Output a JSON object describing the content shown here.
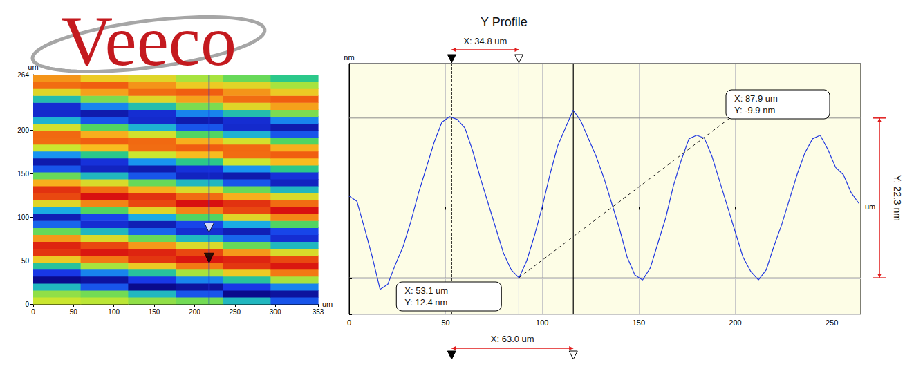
{
  "logo": "Veeco",
  "chart_data": [
    {
      "type": "heatmap",
      "x_label": "um",
      "y_label": "um",
      "xlim": [
        0,
        353
      ],
      "xticks": [
        0,
        50,
        100,
        150,
        200,
        250,
        300,
        353
      ],
      "ylim": [
        0,
        264
      ],
      "yticks": [
        0,
        50,
        100,
        150,
        200,
        264
      ],
      "x_edges": [
        0,
        58.8,
        117.7,
        176.5,
        235.3,
        294.2,
        353
      ],
      "y_edges": [
        0,
        8,
        16,
        24,
        32,
        40,
        48,
        56,
        64,
        72,
        80,
        88,
        96,
        104,
        112,
        120,
        128,
        136,
        144,
        152,
        160,
        168,
        176,
        184,
        192,
        200,
        208,
        216,
        224,
        232,
        240,
        248,
        256,
        264
      ],
      "z": [
        [
          3,
          2.5,
          1.5,
          0.8,
          -3,
          -7
        ],
        [
          1.5,
          0.8,
          -3,
          -7,
          -11.5,
          -10.8
        ],
        [
          -3,
          -7,
          -11.5,
          -10.8,
          -8,
          -5.5
        ],
        [
          -11.5,
          -10.8,
          -8,
          -5.5,
          -2,
          2
        ],
        [
          -8,
          -5.5,
          -2,
          2,
          5.5,
          9
        ],
        [
          -2,
          2,
          5.5,
          9,
          11.8,
          13.2
        ],
        [
          5.5,
          9,
          11.8,
          13.2,
          12.6,
          11
        ],
        [
          11.8,
          13.2,
          12.6,
          11,
          7.8,
          4
        ],
        [
          12.6,
          11,
          7.8,
          4,
          0.5,
          -3
        ],
        [
          7.8,
          4,
          0.5,
          -3,
          -6.5,
          -8.8
        ],
        [
          0.5,
          -3,
          -6.5,
          -8.8,
          -9.9,
          -7.5
        ],
        [
          -6.5,
          -8.8,
          -9.9,
          -7.5,
          -4,
          0
        ],
        [
          -9.9,
          -7.5,
          -4,
          0,
          4.5,
          8.5
        ],
        [
          -4,
          0,
          4.5,
          8.5,
          11,
          13.5
        ],
        [
          4.5,
          8.5,
          11,
          13.5,
          12,
          9.5
        ],
        [
          11,
          13.5,
          12,
          9.5,
          7,
          4
        ],
        [
          12,
          9.5,
          7,
          4,
          0.5,
          -3
        ],
        [
          7,
          4,
          0.5,
          -3,
          -7,
          -9.5
        ],
        [
          0.5,
          -3,
          -7,
          -9.5,
          -10.2,
          -8.5
        ],
        [
          -7,
          -9.5,
          -10.2,
          -8.5,
          -5,
          -1.5
        ],
        [
          -10.2,
          -8.5,
          -5,
          -1.5,
          3,
          6.5
        ],
        [
          -5,
          -1.5,
          3,
          6.5,
          9.5,
          10
        ],
        [
          3,
          6.5,
          9.5,
          10,
          9.6,
          7
        ],
        [
          9.5,
          10,
          9.6,
          7,
          3.5,
          0
        ],
        [
          9.6,
          7,
          3.5,
          0,
          -3.5,
          -7
        ],
        [
          3.5,
          0,
          -3.5,
          -7,
          -9,
          -10.2
        ],
        [
          -3.5,
          -7,
          -9,
          -10.2,
          -8.8,
          -5.5
        ],
        [
          -9,
          -10.2,
          -8.8,
          -5.5,
          -2.5,
          1
        ],
        [
          -8.8,
          -5.5,
          -2.5,
          1,
          4.5,
          7.5
        ],
        [
          -2.5,
          1,
          4.5,
          7.5,
          9.5,
          10
        ],
        [
          4.5,
          7.5,
          9.5,
          10,
          8,
          5.5
        ],
        [
          9.5,
          10,
          8,
          5.5,
          4.5,
          2
        ],
        [
          8,
          5.5,
          4.5,
          2,
          0.5,
          -1.5
        ]
      ],
      "zlim": [
        -11.5,
        13.5
      ],
      "profile_line": {
        "x": 218,
        "color": "#2038e0"
      },
      "cursors": [
        {
          "y": 53.1,
          "color": "#000000"
        },
        {
          "y": 87.9,
          "color": "#ffffff"
        }
      ]
    },
    {
      "type": "line",
      "title": "Y Profile",
      "x_label": "um",
      "y_label": "nm",
      "xlim": [
        0,
        265
      ],
      "xticks": [
        0,
        50,
        100,
        150,
        200,
        250
      ],
      "ylim": [
        -15,
        20
      ],
      "yticks": [
        -15,
        -10,
        -5,
        0,
        5,
        10,
        15,
        20
      ],
      "grid": true,
      "tick_labels": "x",
      "color": "#2038e0",
      "x": [
        0,
        4,
        8,
        12,
        16,
        20,
        24,
        28,
        32,
        36,
        40,
        44,
        48,
        52,
        56,
        60,
        64,
        68,
        72,
        76,
        80,
        84,
        88,
        92,
        96,
        100,
        104,
        108,
        112,
        116,
        120,
        124,
        128,
        132,
        136,
        140,
        144,
        148,
        152,
        156,
        160,
        164,
        168,
        172,
        176,
        180,
        184,
        188,
        192,
        196,
        200,
        204,
        208,
        212,
        216,
        220,
        224,
        228,
        232,
        236,
        240,
        244,
        248,
        252,
        256,
        260,
        264
      ],
      "values": [
        1.5,
        0.8,
        -3,
        -7,
        -11.5,
        -10.8,
        -8,
        -5.5,
        -2,
        2,
        5.5,
        9,
        11.8,
        12.6,
        12.2,
        11,
        7.8,
        4,
        0.5,
        -3,
        -6.5,
        -8.8,
        -9.9,
        -7.5,
        -4,
        0,
        4.5,
        8.5,
        11,
        13.5,
        12,
        9.5,
        7,
        4,
        0.5,
        -3,
        -7,
        -9.5,
        -10.2,
        -8.5,
        -5,
        -1.5,
        3,
        6.5,
        9.5,
        10,
        9.6,
        7,
        3.5,
        0,
        -3.5,
        -7,
        -9,
        -10.2,
        -8.8,
        -5.5,
        -2.5,
        1,
        4.5,
        7.5,
        9.5,
        10,
        8,
        5.5,
        4.5,
        2,
        0.5
      ],
      "cursors": [
        {
          "x": 53.1,
          "y": 12.4,
          "color": "#000000",
          "line_style": "dashed",
          "label": [
            "X: 53.1 um",
            "Y: 12.4 nm"
          ]
        },
        {
          "x": 87.9,
          "y": -9.9,
          "color": "#2038e0",
          "line_style": "solid",
          "label": [
            "X: 87.9 um",
            "Y: -9.9 nm"
          ]
        }
      ],
      "x_span_top": {
        "from": 53.1,
        "to": 87.9,
        "label": "X: 34.8 um"
      },
      "x_span_bottom": {
        "from": 53.1,
        "to": 116.1,
        "label": "X: 63.0 um"
      },
      "y_span": {
        "from": 12.4,
        "to": -9.9,
        "label": "Y: 22.3 nm"
      }
    }
  ]
}
